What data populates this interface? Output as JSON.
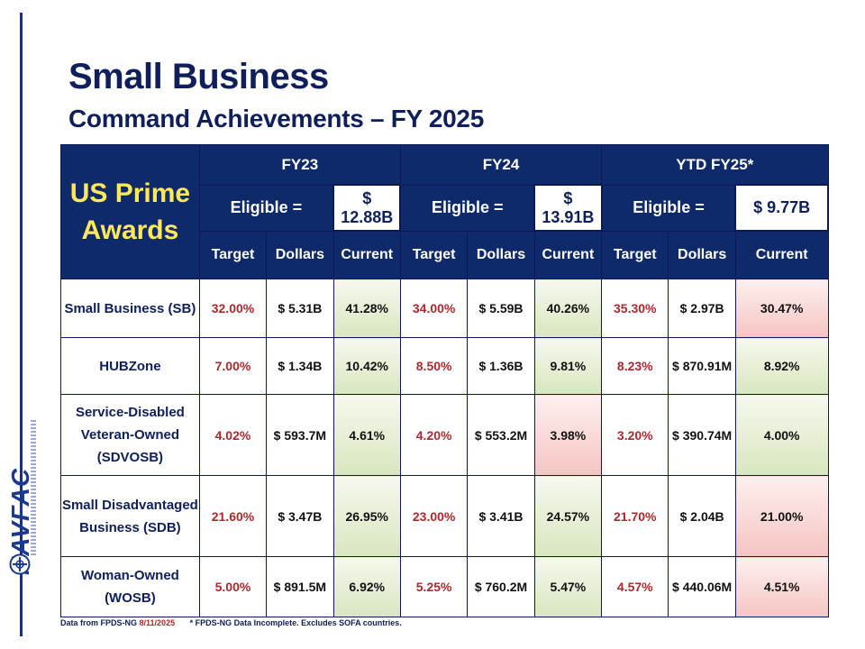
{
  "title": "Small Business",
  "subtitle": "Command Achievements – FY 2025",
  "corner_label": [
    "US Prime",
    "Awards"
  ],
  "logo": {
    "text": "NAVFAC",
    "icon": "navfac-emblem-icon"
  },
  "years": [
    {
      "label": "FY23",
      "eligible_label": "Eligible =",
      "eligible_amount": "$ 12.88B"
    },
    {
      "label": "FY24",
      "eligible_label": "Eligible =",
      "eligible_amount": "$ 13.91B"
    },
    {
      "label": "YTD FY25*",
      "eligible_label": "Eligible =",
      "eligible_amount": "$ 9.77B"
    }
  ],
  "columns": [
    "Target",
    "Dollars",
    "Current"
  ],
  "colors": {
    "navy": "#0f2a6b",
    "target_red": "#b0272b",
    "good_green": "#d9e6bf",
    "bad_pink": "#f5c4c2"
  },
  "rows": [
    {
      "label": "Small Business (SB)",
      "cells": [
        {
          "target": "32.00%",
          "dollars": "$ 5.31B",
          "current": "41.28%",
          "status": "good"
        },
        {
          "target": "34.00%",
          "dollars": "$ 5.59B",
          "current": "40.26%",
          "status": "good"
        },
        {
          "target": "35.30%",
          "dollars": "$ 2.97B",
          "current": "30.47%",
          "status": "bad"
        }
      ]
    },
    {
      "label": "HUBZone",
      "cells": [
        {
          "target": "7.00%",
          "dollars": "$ 1.34B",
          "current": "10.42%",
          "status": "good"
        },
        {
          "target": "8.50%",
          "dollars": "$ 1.36B",
          "current": "9.81%",
          "status": "good"
        },
        {
          "target": "8.23%",
          "dollars": "$ 870.91M",
          "current": "8.92%",
          "status": "good"
        }
      ]
    },
    {
      "label": "Service-Disabled Veteran-Owned (SDVOSB)",
      "cells": [
        {
          "target": "4.02%",
          "dollars": "$ 593.7M",
          "current": "4.61%",
          "status": "good"
        },
        {
          "target": "4.20%",
          "dollars": "$ 553.2M",
          "current": "3.98%",
          "status": "bad"
        },
        {
          "target": "3.20%",
          "dollars": "$ 390.74M",
          "current": "4.00%",
          "status": "good"
        }
      ]
    },
    {
      "label": "Small Disadvantaged Business (SDB)",
      "cells": [
        {
          "target": "21.60%",
          "dollars": "$ 3.47B",
          "current": "26.95%",
          "status": "good"
        },
        {
          "target": "23.00%",
          "dollars": "$ 3.41B",
          "current": "24.57%",
          "status": "good"
        },
        {
          "target": "21.70%",
          "dollars": "$ 2.04B",
          "current": "21.00%",
          "status": "bad"
        }
      ]
    },
    {
      "label": "Woman-Owned (WOSB)",
      "cells": [
        {
          "target": "5.00%",
          "dollars": "$ 891.5M",
          "current": "6.92%",
          "status": "good"
        },
        {
          "target": "5.25%",
          "dollars": "$ 760.2M",
          "current": "5.47%",
          "status": "good"
        },
        {
          "target": "4.57%",
          "dollars": "$ 440.06M",
          "current": "4.51%",
          "status": "bad"
        }
      ]
    }
  ],
  "footer": {
    "source": "Data from FPDS-NG",
    "date": "8/11/2025",
    "note": "* FPDS-NG Data Incomplete.  Excludes SOFA countries."
  }
}
